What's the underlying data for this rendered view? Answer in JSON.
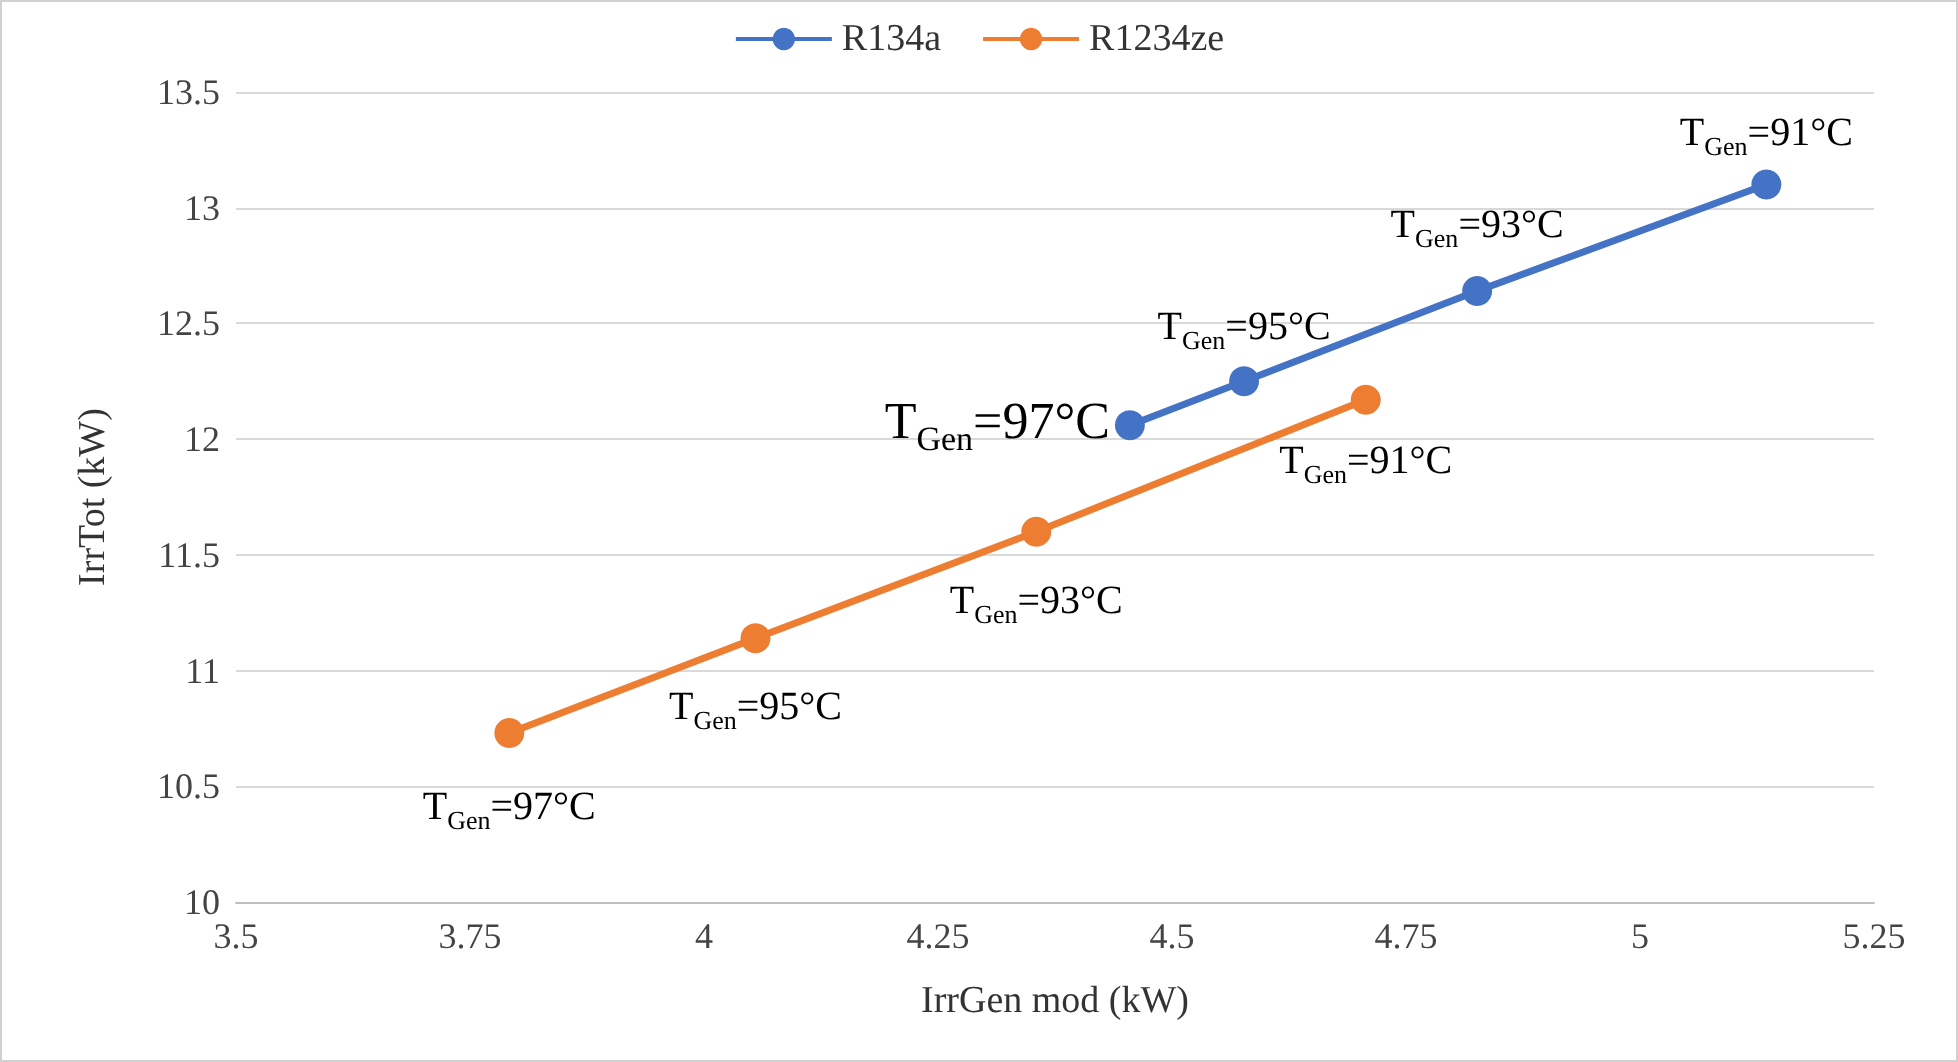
{
  "chart_data": {
    "type": "line",
    "xlabel": "IrrGen mod (kW)",
    "ylabel": "IrrTot (kW)",
    "series": [
      {
        "name": "R134a",
        "color": "#4472c4",
        "x": [
          4.455,
          4.577,
          4.826,
          5.135
        ],
        "values": [
          12.06,
          12.25,
          12.64,
          13.1
        ]
      },
      {
        "name": "R1234ze",
        "color": "#ed7d31",
        "x": [
          3.792,
          4.055,
          4.355,
          4.707
        ],
        "values": [
          10.73,
          11.14,
          11.6,
          12.17
        ]
      }
    ],
    "xlim": [
      3.5,
      5.25
    ],
    "xticks": [
      3.5,
      3.75,
      4,
      4.25,
      4.5,
      4.75,
      5,
      5.25
    ],
    "ylim": [
      10,
      13.5
    ],
    "yticks": [
      10,
      10.5,
      11,
      11.5,
      12,
      12.5,
      13,
      13.5
    ],
    "grid": "y",
    "legend": "top",
    "marker": "circle",
    "line_style": "solid",
    "annotations": [
      {
        "text": "T$_{Gen}$=97°C",
        "x": 4.455,
        "y": 12.06
      },
      {
        "text": "T$_{Gen}$=95°C",
        "x": 4.577,
        "y": 12.25
      },
      {
        "text": "T$_{Gen}$=93°C",
        "x": 4.826,
        "y": 12.64
      },
      {
        "text": "T$_{Gen}$=91°C",
        "x": 5.135,
        "y": 13.1
      },
      {
        "text": "T$_{Gen}$=97°C",
        "x": 3.792,
        "y": 10.73
      },
      {
        "text": "T$_{Gen}$=95°C",
        "x": 4.055,
        "y": 11.14
      },
      {
        "text": "T$_{Gen}$=93°C",
        "x": 4.355,
        "y": 11.6
      },
      {
        "text": "T$_{Gen}$=91°C",
        "x": 4.707,
        "y": 12.17
      }
    ]
  }
}
